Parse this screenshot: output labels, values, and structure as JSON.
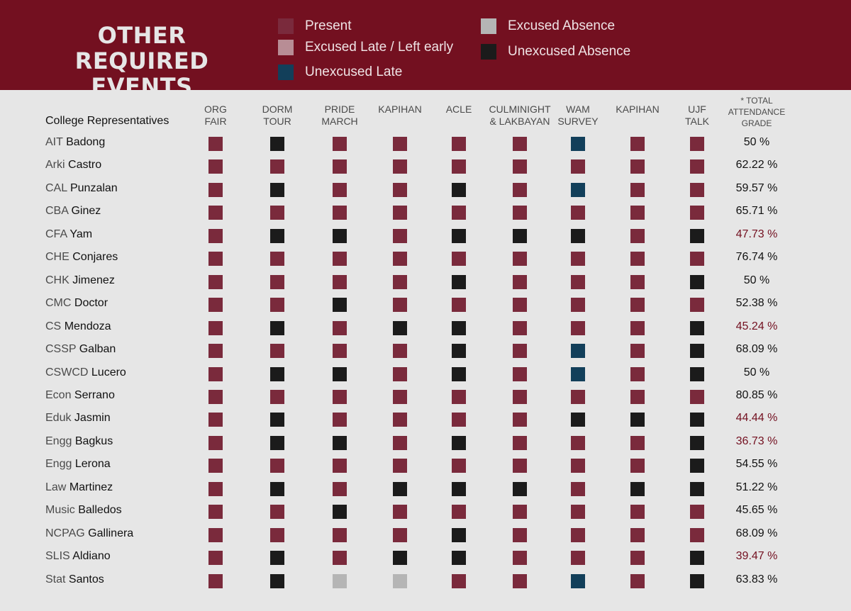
{
  "header": {
    "title_line1": "OTHER",
    "title_line2": "REQUIRED EVENTS"
  },
  "legend": [
    {
      "key": "P",
      "label": "Present",
      "color": "#7a2a3c"
    },
    {
      "key": "L",
      "label": "Excused Late / Left early",
      "color": "#b88d95"
    },
    {
      "key": "U",
      "label": "Unexcused Late",
      "color": "#123f5a"
    },
    {
      "key": "E",
      "label": "Excused Absence",
      "color": "#b5b5b5"
    },
    {
      "key": "A",
      "label": "Unexcused Absence",
      "color": "#1b1b1b"
    }
  ],
  "colors": {
    "header_bg": "#731020",
    "page_bg": "#e6e6e6",
    "low_grade_text": "#731020"
  },
  "chart_data": {
    "type": "table",
    "row_header": "College Representatives",
    "columns": [
      {
        "line1": "ORG",
        "line2": "FAIR"
      },
      {
        "line1": "DORM",
        "line2": "TOUR"
      },
      {
        "line1": "PRIDE",
        "line2": "MARCH"
      },
      {
        "line1": "KAPIHAN",
        "line2": ""
      },
      {
        "line1": "ACLE",
        "line2": ""
      },
      {
        "line1": "CULMINIGHT",
        "line2": "& LAKBAYAN"
      },
      {
        "line1": "WAM",
        "line2": "SURVEY"
      },
      {
        "line1": "KAPIHAN",
        "line2": ""
      },
      {
        "line1": "UJF",
        "line2": "TALK"
      }
    ],
    "total_header": {
      "line1": "* TOTAL",
      "line2": "ATTENDANCE",
      "line3": "GRADE"
    },
    "rows": [
      {
        "college": "AIT",
        "name": "Badong",
        "attendance": [
          "P",
          "A",
          "P",
          "P",
          "P",
          "P",
          "U",
          "P",
          "P"
        ],
        "grade": "50 %",
        "low": false
      },
      {
        "college": "Arki",
        "name": "Castro",
        "attendance": [
          "P",
          "P",
          "P",
          "P",
          "P",
          "P",
          "P",
          "P",
          "P"
        ],
        "grade": "62.22 %",
        "low": false
      },
      {
        "college": "CAL",
        "name": "Punzalan",
        "attendance": [
          "P",
          "A",
          "P",
          "P",
          "A",
          "P",
          "U",
          "P",
          "P"
        ],
        "grade": "59.57 %",
        "low": false
      },
      {
        "college": "CBA",
        "name": "Ginez",
        "attendance": [
          "P",
          "P",
          "P",
          "P",
          "P",
          "P",
          "P",
          "P",
          "P"
        ],
        "grade": "65.71 %",
        "low": false
      },
      {
        "college": "CFA",
        "name": "Yam",
        "attendance": [
          "P",
          "A",
          "A",
          "P",
          "A",
          "A",
          "A",
          "P",
          "A"
        ],
        "grade": "47.73 %",
        "low": true
      },
      {
        "college": "CHE",
        "name": "Conjares",
        "attendance": [
          "P",
          "P",
          "P",
          "P",
          "P",
          "P",
          "P",
          "P",
          "P"
        ],
        "grade": "76.74 %",
        "low": false
      },
      {
        "college": "CHK",
        "name": "Jimenez",
        "attendance": [
          "P",
          "P",
          "P",
          "P",
          "A",
          "P",
          "P",
          "P",
          "A"
        ],
        "grade": "50 %",
        "low": false
      },
      {
        "college": "CMC",
        "name": "Doctor",
        "attendance": [
          "P",
          "P",
          "A",
          "P",
          "P",
          "P",
          "P",
          "P",
          "P"
        ],
        "grade": "52.38 %",
        "low": false
      },
      {
        "college": "CS",
        "name": "Mendoza",
        "attendance": [
          "P",
          "A",
          "P",
          "A",
          "A",
          "P",
          "P",
          "P",
          "A"
        ],
        "grade": "45.24 %",
        "low": true
      },
      {
        "college": "CSSP",
        "name": "Galban",
        "attendance": [
          "P",
          "P",
          "P",
          "P",
          "A",
          "P",
          "U",
          "P",
          "A"
        ],
        "grade": "68.09 %",
        "low": false
      },
      {
        "college": "CSWCD",
        "name": "Lucero",
        "attendance": [
          "P",
          "A",
          "A",
          "P",
          "A",
          "P",
          "U",
          "P",
          "A"
        ],
        "grade": "50 %",
        "low": false
      },
      {
        "college": "Econ",
        "name": "Serrano",
        "attendance": [
          "P",
          "P",
          "P",
          "P",
          "P",
          "P",
          "P",
          "P",
          "P"
        ],
        "grade": "80.85 %",
        "low": false
      },
      {
        "college": "Eduk",
        "name": "Jasmin",
        "attendance": [
          "P",
          "A",
          "P",
          "P",
          "P",
          "P",
          "A",
          "A",
          "A"
        ],
        "grade": "44.44 %",
        "low": true
      },
      {
        "college": "Engg",
        "name": "Bagkus",
        "attendance": [
          "P",
          "A",
          "A",
          "P",
          "A",
          "P",
          "P",
          "P",
          "A"
        ],
        "grade": "36.73 %",
        "low": true
      },
      {
        "college": "Engg",
        "name": "Lerona",
        "attendance": [
          "P",
          "P",
          "P",
          "P",
          "P",
          "P",
          "P",
          "P",
          "A"
        ],
        "grade": "54.55 %",
        "low": false
      },
      {
        "college": "Law",
        "name": "Martinez",
        "attendance": [
          "P",
          "A",
          "P",
          "A",
          "A",
          "A",
          "P",
          "A",
          "A"
        ],
        "grade": "51.22 %",
        "low": false
      },
      {
        "college": "Music",
        "name": "Balledos",
        "attendance": [
          "P",
          "P",
          "A",
          "P",
          "P",
          "P",
          "P",
          "P",
          "P"
        ],
        "grade": "45.65 %",
        "low": false
      },
      {
        "college": "NCPAG",
        "name": "Gallinera",
        "attendance": [
          "P",
          "P",
          "P",
          "P",
          "A",
          "P",
          "P",
          "P",
          "P"
        ],
        "grade": "68.09 %",
        "low": false
      },
      {
        "college": "SLIS",
        "name": "Aldiano",
        "attendance": [
          "P",
          "A",
          "P",
          "A",
          "A",
          "P",
          "P",
          "P",
          "A"
        ],
        "grade": "39.47 %",
        "low": true
      },
      {
        "college": "Stat",
        "name": "Santos",
        "attendance": [
          "P",
          "A",
          "E",
          "E",
          "P",
          "P",
          "U",
          "P",
          "A"
        ],
        "grade": "63.83 %",
        "low": false
      }
    ]
  }
}
